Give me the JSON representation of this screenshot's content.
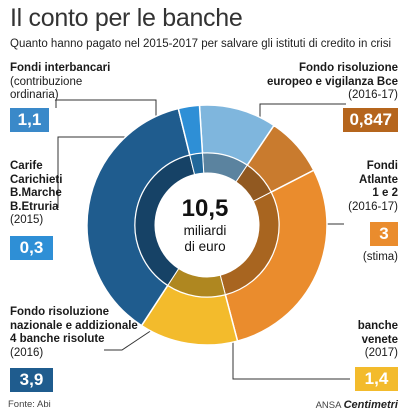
{
  "title": "Il conto per le banche",
  "subtitle": "Quanto hanno pagato nel 2015-2017 per salvare gli istituti di credito in crisi",
  "center": {
    "value": "10,5",
    "line1": "miliardi",
    "line2": "di euro"
  },
  "source": "Fonte: Abi",
  "brand": {
    "prefix": "ANSA",
    "name": "Centimetri"
  },
  "labels": {
    "fondi_interbancari": {
      "title": "Fondi interbancari",
      "sub1": "(contribuzione",
      "sub2": "ordinaria)",
      "value": "1,1"
    },
    "carife": {
      "l1": "Carife",
      "l2": "Carichieti",
      "l3": "B.Marche",
      "l4": "B.Etruria",
      "sub": "(2015)",
      "value": "0,3"
    },
    "fondo_nazionale": {
      "l1": "Fondo risoluzione",
      "l2": "nazionale e addizionale",
      "l3": "4 banche risolute",
      "sub": "(2016)",
      "value": "3,9"
    },
    "fondo_europeo": {
      "l1": "Fondo risoluzione",
      "l2": "europeo e vigilanza Bce",
      "sub": "(2016-17)",
      "value": "0,847"
    },
    "atlante": {
      "l1": "Fondi",
      "l2": "Atlante",
      "l3": "1 e 2",
      "sub": "(2016-17)",
      "value": "3",
      "note": "(stima)"
    },
    "venete": {
      "l1": "banche",
      "l2": "venete",
      "sub": "(2017)",
      "value": "1,4"
    }
  },
  "chart_data": {
    "type": "pie",
    "total": 10.5,
    "slices": [
      {
        "label": "Fondi interbancari (contribuzione ordinaria)",
        "value": 1.1,
        "color": "#7fb6dd"
      },
      {
        "label": "Fondo risoluzione europeo e vigilanza Bce (2016-17)",
        "value": 0.847,
        "color": "#c97b2e"
      },
      {
        "label": "Fondi Atlante 1 e 2 (2016-17)",
        "value": 3,
        "color": "#ea8c2d"
      },
      {
        "label": "banche venete (2017)",
        "value": 1.4,
        "color": "#f3bb2c"
      },
      {
        "label": "Fondo risoluzione nazionale e addizionale 4 banche risolute (2016)",
        "value": 3.9,
        "color": "#1f5c8e"
      },
      {
        "label": "Carife Carichieti B.Marche B.Etruria (2015)",
        "value": 0.3,
        "color": "#2e8fd6"
      }
    ],
    "badge_colors": {
      "blue": "#3a89c9",
      "navy": "#1f5c8e",
      "brown": "#b5651d",
      "orange": "#ea8c2d",
      "yellow": "#f3bb2c",
      "bright_blue": "#2e8fd6"
    }
  }
}
